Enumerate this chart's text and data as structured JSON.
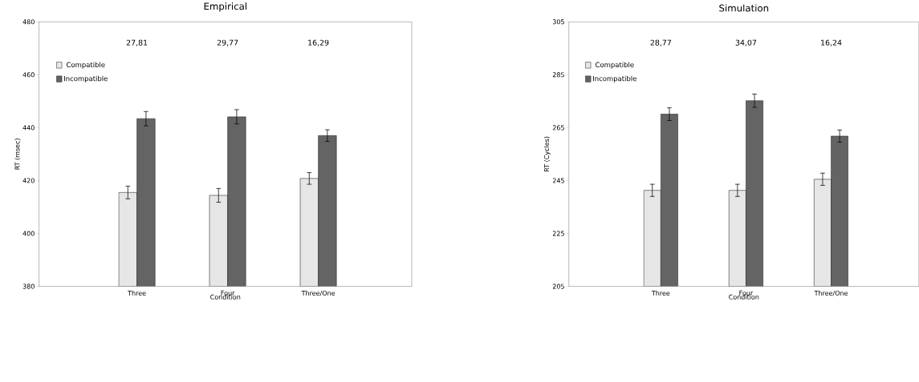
{
  "chart_data": [
    {
      "type": "bar",
      "title": "Empirical",
      "xlabel": "Condition",
      "ylabel": "RT (msec)",
      "categories": [
        "Three",
        "Four",
        "Three/One"
      ],
      "series": [
        {
          "name": "Compatible",
          "color": "#e6e6e6",
          "values": [
            415.5,
            414.4,
            420.8
          ],
          "errors": [
            2.4,
            2.6,
            2.2
          ]
        },
        {
          "name": "Incompatible",
          "color": "#646464",
          "values": [
            443.4,
            444.1,
            437.0
          ],
          "errors": [
            2.7,
            2.7,
            2.2
          ]
        }
      ],
      "ylim": [
        380,
        480
      ],
      "yticks": [
        380,
        400,
        420,
        440,
        460,
        480
      ],
      "legend": "top left",
      "grid": false,
      "annotations": [
        "27,81",
        "29,77",
        "16,29"
      ]
    },
    {
      "type": "bar",
      "title": "Simulation",
      "xlabel": "Condition",
      "ylabel": "RT (Cycles)",
      "categories": [
        "Three",
        "Four",
        "Three/One"
      ],
      "series": [
        {
          "name": "Compatible",
          "color": "#e6e6e6",
          "values": [
            241.3,
            241.3,
            245.5
          ],
          "errors": [
            2.3,
            2.3,
            2.3
          ]
        },
        {
          "name": "Incompatible",
          "color": "#646464",
          "values": [
            270.1,
            275.2,
            261.8
          ],
          "errors": [
            2.4,
            2.5,
            2.3
          ]
        }
      ],
      "ylim": [
        205,
        305
      ],
      "yticks": [
        205,
        225,
        245,
        265,
        285,
        305
      ],
      "legend": "top left",
      "grid": false,
      "annotations": [
        "28,77",
        "34,07",
        "16,24"
      ]
    }
  ]
}
